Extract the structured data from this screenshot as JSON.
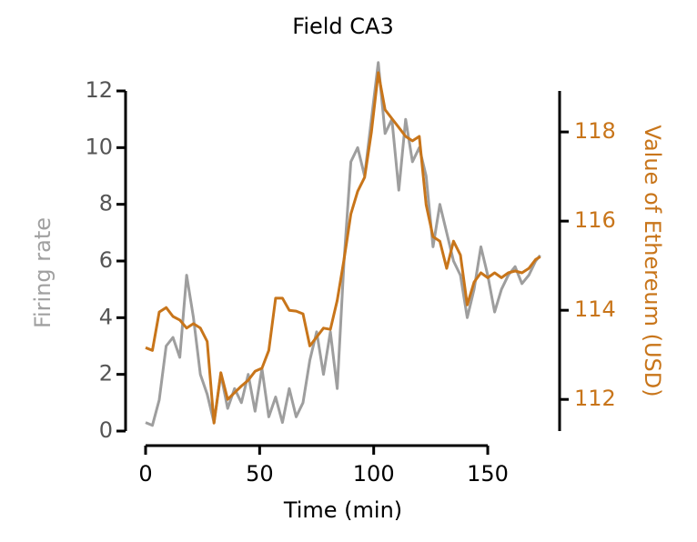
{
  "chart_data": {
    "type": "line",
    "title": "Field CA3",
    "x_label": "Time (min)",
    "y_label": "Firing rate",
    "y2_label": "Value of Ethereum (USD)",
    "x": [
      0,
      3,
      6,
      9,
      12,
      15,
      18,
      21,
      24,
      27,
      30,
      33,
      36,
      39,
      42,
      45,
      48,
      51,
      54,
      57,
      60,
      63,
      66,
      69,
      72,
      75,
      78,
      81,
      84,
      87,
      90,
      93,
      96,
      99,
      102,
      105,
      108,
      111,
      114,
      117,
      120,
      123,
      126,
      129,
      132,
      135,
      138,
      141,
      144,
      147,
      150,
      153,
      156,
      159,
      162,
      165,
      168,
      171,
      173
    ],
    "series": [
      {
        "color": "#9e9e9e",
        "values": [
          0.3,
          0.2,
          1.1,
          3.0,
          3.3,
          2.6,
          5.5,
          4.0,
          2.0,
          1.3,
          0.3,
          2.0,
          0.8,
          1.5,
          1.0,
          2.0,
          0.7,
          2.2,
          0.5,
          1.2,
          0.3,
          1.5,
          0.5,
          1.0,
          2.5,
          3.5,
          2.0,
          3.5,
          1.5,
          6.0,
          9.5,
          10.0,
          9.0,
          11.0,
          13.0,
          10.5,
          11.0,
          8.5,
          11.0,
          9.5,
          10.0,
          9.0,
          6.5,
          8.0,
          7.0,
          6.0,
          5.5,
          4.0,
          5.0,
          6.5,
          5.5,
          4.2,
          5.0,
          5.5,
          5.8,
          5.2,
          5.5,
          6.0,
          6.2
        ]
      },
      {
        "color": "#c8751a",
        "axis": "y2",
        "values": [
          113.16,
          113.1,
          113.96,
          114.06,
          113.86,
          113.78,
          113.6,
          113.7,
          113.6,
          113.3,
          111.47,
          112.6,
          112.0,
          112.15,
          112.3,
          112.43,
          112.63,
          112.7,
          113.1,
          114.27,
          114.27,
          114.0,
          113.98,
          113.92,
          113.2,
          113.4,
          113.6,
          113.57,
          114.22,
          115.14,
          116.16,
          116.67,
          116.98,
          118.0,
          119.33,
          118.5,
          118.3,
          118.1,
          117.9,
          117.8,
          117.9,
          116.37,
          115.65,
          115.55,
          114.94,
          115.55,
          115.24,
          114.12,
          114.63,
          114.84,
          114.73,
          114.84,
          114.73,
          114.84,
          114.88,
          114.84,
          114.94,
          115.14,
          115.2
        ]
      }
    ],
    "xlim": [
      0,
      181.5
    ],
    "xticks": [
      0,
      50,
      100,
      150
    ],
    "ylim": [
      0,
      12
    ],
    "yticks": [
      0,
      2,
      4,
      6,
      8,
      10,
      12
    ],
    "y2lim": [
      111.29,
      118.92
    ],
    "y2ticks": [
      112,
      114,
      116,
      118
    ]
  }
}
